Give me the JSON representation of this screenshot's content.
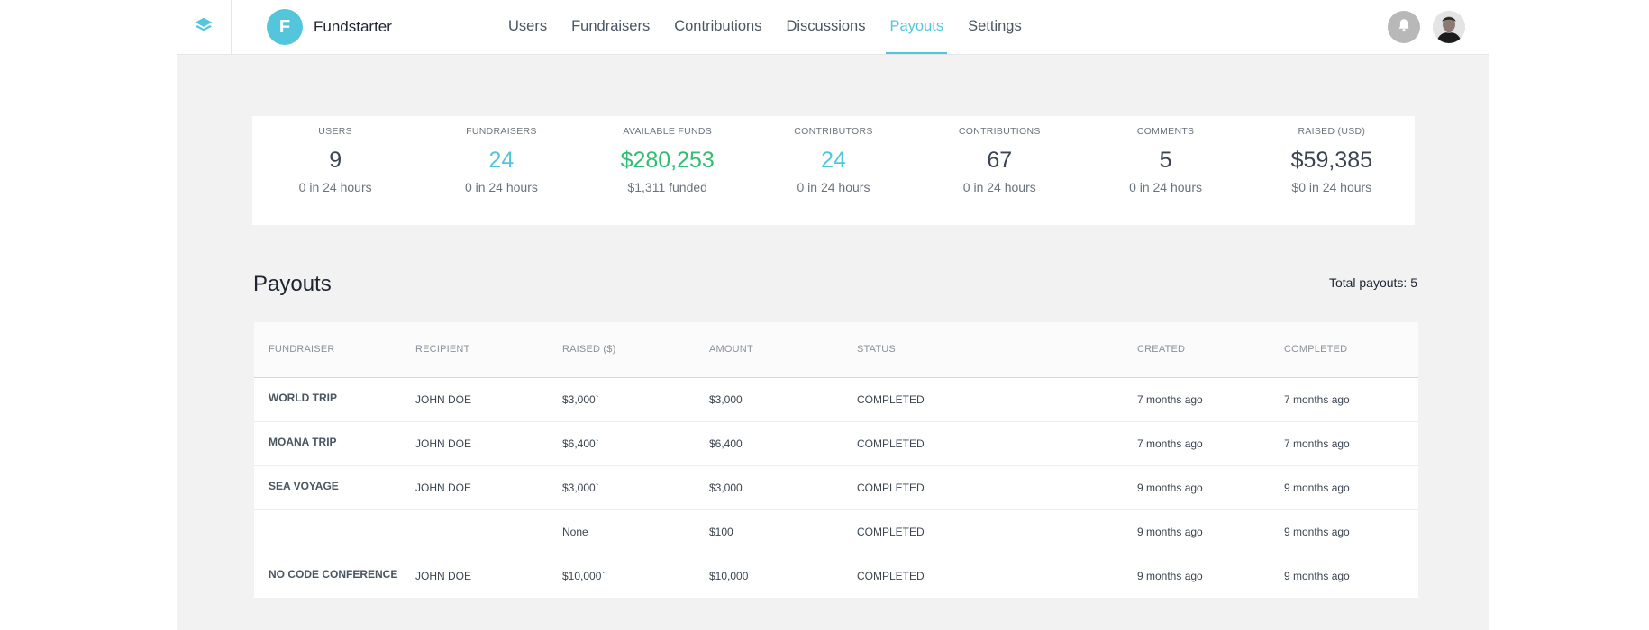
{
  "app": {
    "name": "Fundstarter",
    "logo_letter": "F",
    "accent_color": "#54c6dc",
    "success_color": "#2fbf71"
  },
  "nav": {
    "items": [
      {
        "label": "Users",
        "active": false
      },
      {
        "label": "Fundraisers",
        "active": false
      },
      {
        "label": "Contributions",
        "active": false
      },
      {
        "label": "Discussions",
        "active": false
      },
      {
        "label": "Payouts",
        "active": true
      },
      {
        "label": "Settings",
        "active": false
      }
    ]
  },
  "icons": {
    "layers": "layers-icon",
    "bell": "bell-icon",
    "avatar": "user-avatar"
  },
  "stats": [
    {
      "label": "USERS",
      "value": "9",
      "sub": "0 in 24 hours",
      "tone": "default"
    },
    {
      "label": "FUNDRAISERS",
      "value": "24",
      "sub": "0 in 24 hours",
      "tone": "teal"
    },
    {
      "label": "AVAILABLE FUNDS",
      "value": "$280,253",
      "sub": "$1,311 funded",
      "tone": "green"
    },
    {
      "label": "CONTRIBUTORS",
      "value": "24",
      "sub": "0 in 24 hours",
      "tone": "teal"
    },
    {
      "label": "CONTRIBUTIONS",
      "value": "67",
      "sub": "0 in 24 hours",
      "tone": "default"
    },
    {
      "label": "COMMENTS",
      "value": "5",
      "sub": "0 in 24 hours",
      "tone": "default"
    },
    {
      "label": "RAISED (USD)",
      "value": "$59,385",
      "sub": "$0 in 24 hours",
      "tone": "default"
    }
  ],
  "payouts": {
    "title": "Payouts",
    "total_label": "Total payouts: 5",
    "columns": [
      "FUNDRAISER",
      "RECIPIENT",
      "RAISED ($)",
      "AMOUNT",
      "STATUS",
      "CREATED",
      "COMPLETED"
    ],
    "rows": [
      {
        "fundraiser": "WORLD TRIP",
        "recipient": "JOHN DOE",
        "raised": "$3,000`",
        "amount": "$3,000",
        "status": "COMPLETED",
        "created": "7 months ago",
        "completed": "7 months ago"
      },
      {
        "fundraiser": "MOANA TRIP",
        "recipient": "JOHN DOE",
        "raised": "$6,400`",
        "amount": "$6,400",
        "status": "COMPLETED",
        "created": "7 months ago",
        "completed": "7 months ago"
      },
      {
        "fundraiser": "SEA VOYAGE",
        "recipient": "JOHN DOE",
        "raised": "$3,000`",
        "amount": "$3,000",
        "status": "COMPLETED",
        "created": "9 months ago",
        "completed": "9 months ago"
      },
      {
        "fundraiser": "",
        "recipient": "",
        "raised": "None",
        "amount": "$100",
        "status": "COMPLETED",
        "created": "9 months ago",
        "completed": "9 months ago"
      },
      {
        "fundraiser": "NO CODE CONFERENCE",
        "recipient": "JOHN DOE",
        "raised": "$10,000`",
        "amount": "$10,000",
        "status": "COMPLETED",
        "created": "9 months ago",
        "completed": "9 months ago"
      }
    ]
  }
}
